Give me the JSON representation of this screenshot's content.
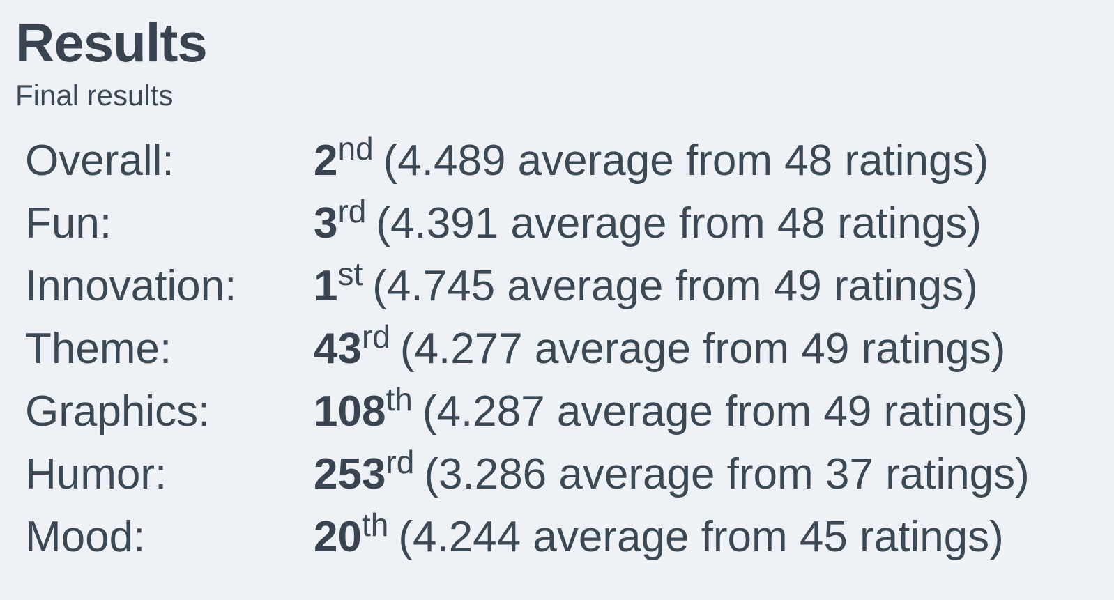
{
  "header": {
    "title": "Results",
    "subtitle": "Final results"
  },
  "results": [
    {
      "label": "Overall:",
      "rank": "2",
      "suffix": "nd",
      "detail": "(4.489 average from 48 ratings)"
    },
    {
      "label": "Fun:",
      "rank": "3",
      "suffix": "rd",
      "detail": "(4.391 average from 48 ratings)"
    },
    {
      "label": "Innovation:",
      "rank": "1",
      "suffix": "st",
      "detail": "(4.745 average from 49 ratings)"
    },
    {
      "label": "Theme:",
      "rank": "43",
      "suffix": "rd",
      "detail": "(4.277 average from 49 ratings)"
    },
    {
      "label": "Graphics:",
      "rank": "108",
      "suffix": "th",
      "detail": "(4.287 average from 49 ratings)"
    },
    {
      "label": "Humor:",
      "rank": "253",
      "suffix": "rd",
      "detail": "(3.286 average from 37 ratings)"
    },
    {
      "label": "Mood:",
      "rank": "20",
      "suffix": "th",
      "detail": "(4.244 average from 45 ratings)"
    }
  ]
}
